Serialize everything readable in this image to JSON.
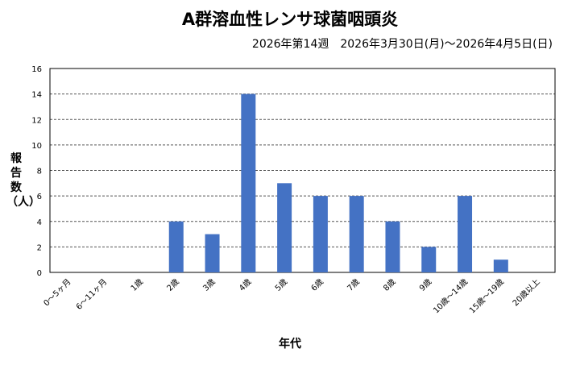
{
  "chart_data": {
    "type": "bar",
    "title": "A群溶血性レンサ球菌咽頭炎",
    "subtitle": "2026年第14週　2026年3月30日(月)～2026年4月5日(日)",
    "xlabel": "年代",
    "ylabel": "報告数（人）",
    "categories": [
      "0～5ヶ月",
      "6～11ヶ月",
      "1歳",
      "2歳",
      "3歳",
      "4歳",
      "5歳",
      "6歳",
      "7歳",
      "8歳",
      "9歳",
      "10歳～14歳",
      "15歳～19歳",
      "20歳以上"
    ],
    "values": [
      0,
      0,
      0,
      4,
      3,
      14,
      7,
      6,
      6,
      4,
      2,
      6,
      1,
      0
    ],
    "ylim": [
      0,
      16
    ],
    "yticks": [
      0,
      2,
      4,
      6,
      8,
      10,
      12,
      14,
      16
    ],
    "grid": true,
    "bar_color": "#4472C4"
  }
}
